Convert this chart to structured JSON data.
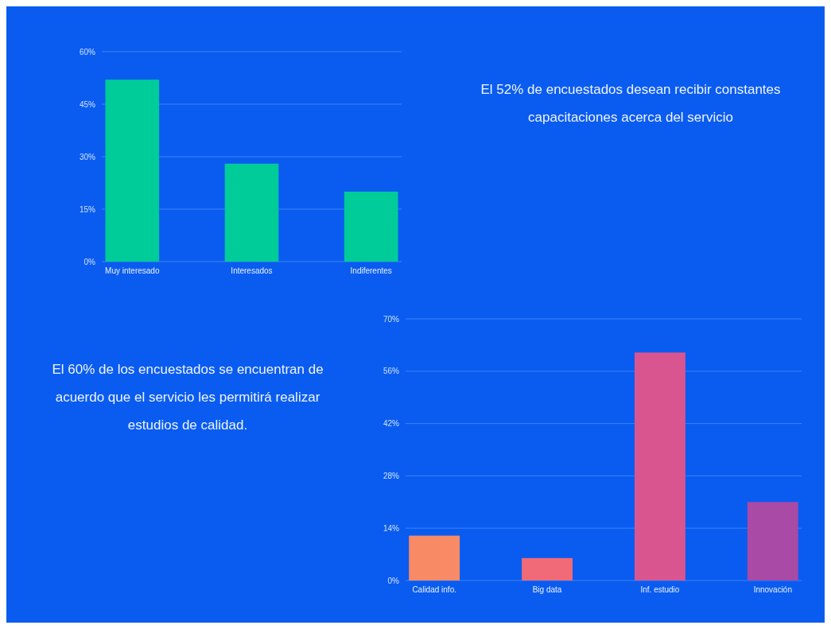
{
  "chart_data": [
    {
      "type": "bar",
      "categories": [
        "Muy interesado",
        "Interesados",
        "Indiferentes"
      ],
      "values": [
        52,
        28,
        20
      ],
      "color": "#00cc99",
      "ylim": [
        0,
        60
      ],
      "yticks": [
        {
          "value": 0,
          "label": "0%"
        },
        {
          "value": 15,
          "label": "15%"
        },
        {
          "value": 30,
          "label": "30%"
        },
        {
          "value": 45,
          "label": "45%"
        },
        {
          "value": 60,
          "label": "60%"
        }
      ],
      "grid": "y"
    },
    {
      "type": "other",
      "title": "El 52% de encuestados desean recibir constantes capacitaciones acerca del servicio"
    },
    {
      "type": "other",
      "title": "El 60% de los encuestados se encuentran de acuerdo que el servicio les permitirá realizar estudios de calidad."
    },
    {
      "type": "bar",
      "categories": [
        "Calidad info.",
        "Big data",
        "Inf. estudio",
        "Innovación"
      ],
      "values": [
        12,
        6,
        61,
        21
      ],
      "colors": [
        "#f98a66",
        "#f06a78",
        "#d9558f",
        "#a94aa6"
      ],
      "ylim": [
        0,
        70
      ],
      "yticks": [
        {
          "value": 0,
          "label": "0%"
        },
        {
          "value": 14,
          "label": "14%"
        },
        {
          "value": 28,
          "label": "28%"
        },
        {
          "value": 42,
          "label": "42%"
        },
        {
          "value": 56,
          "label": "56%"
        },
        {
          "value": 70,
          "label": "70%"
        }
      ],
      "grid": "y"
    }
  ]
}
